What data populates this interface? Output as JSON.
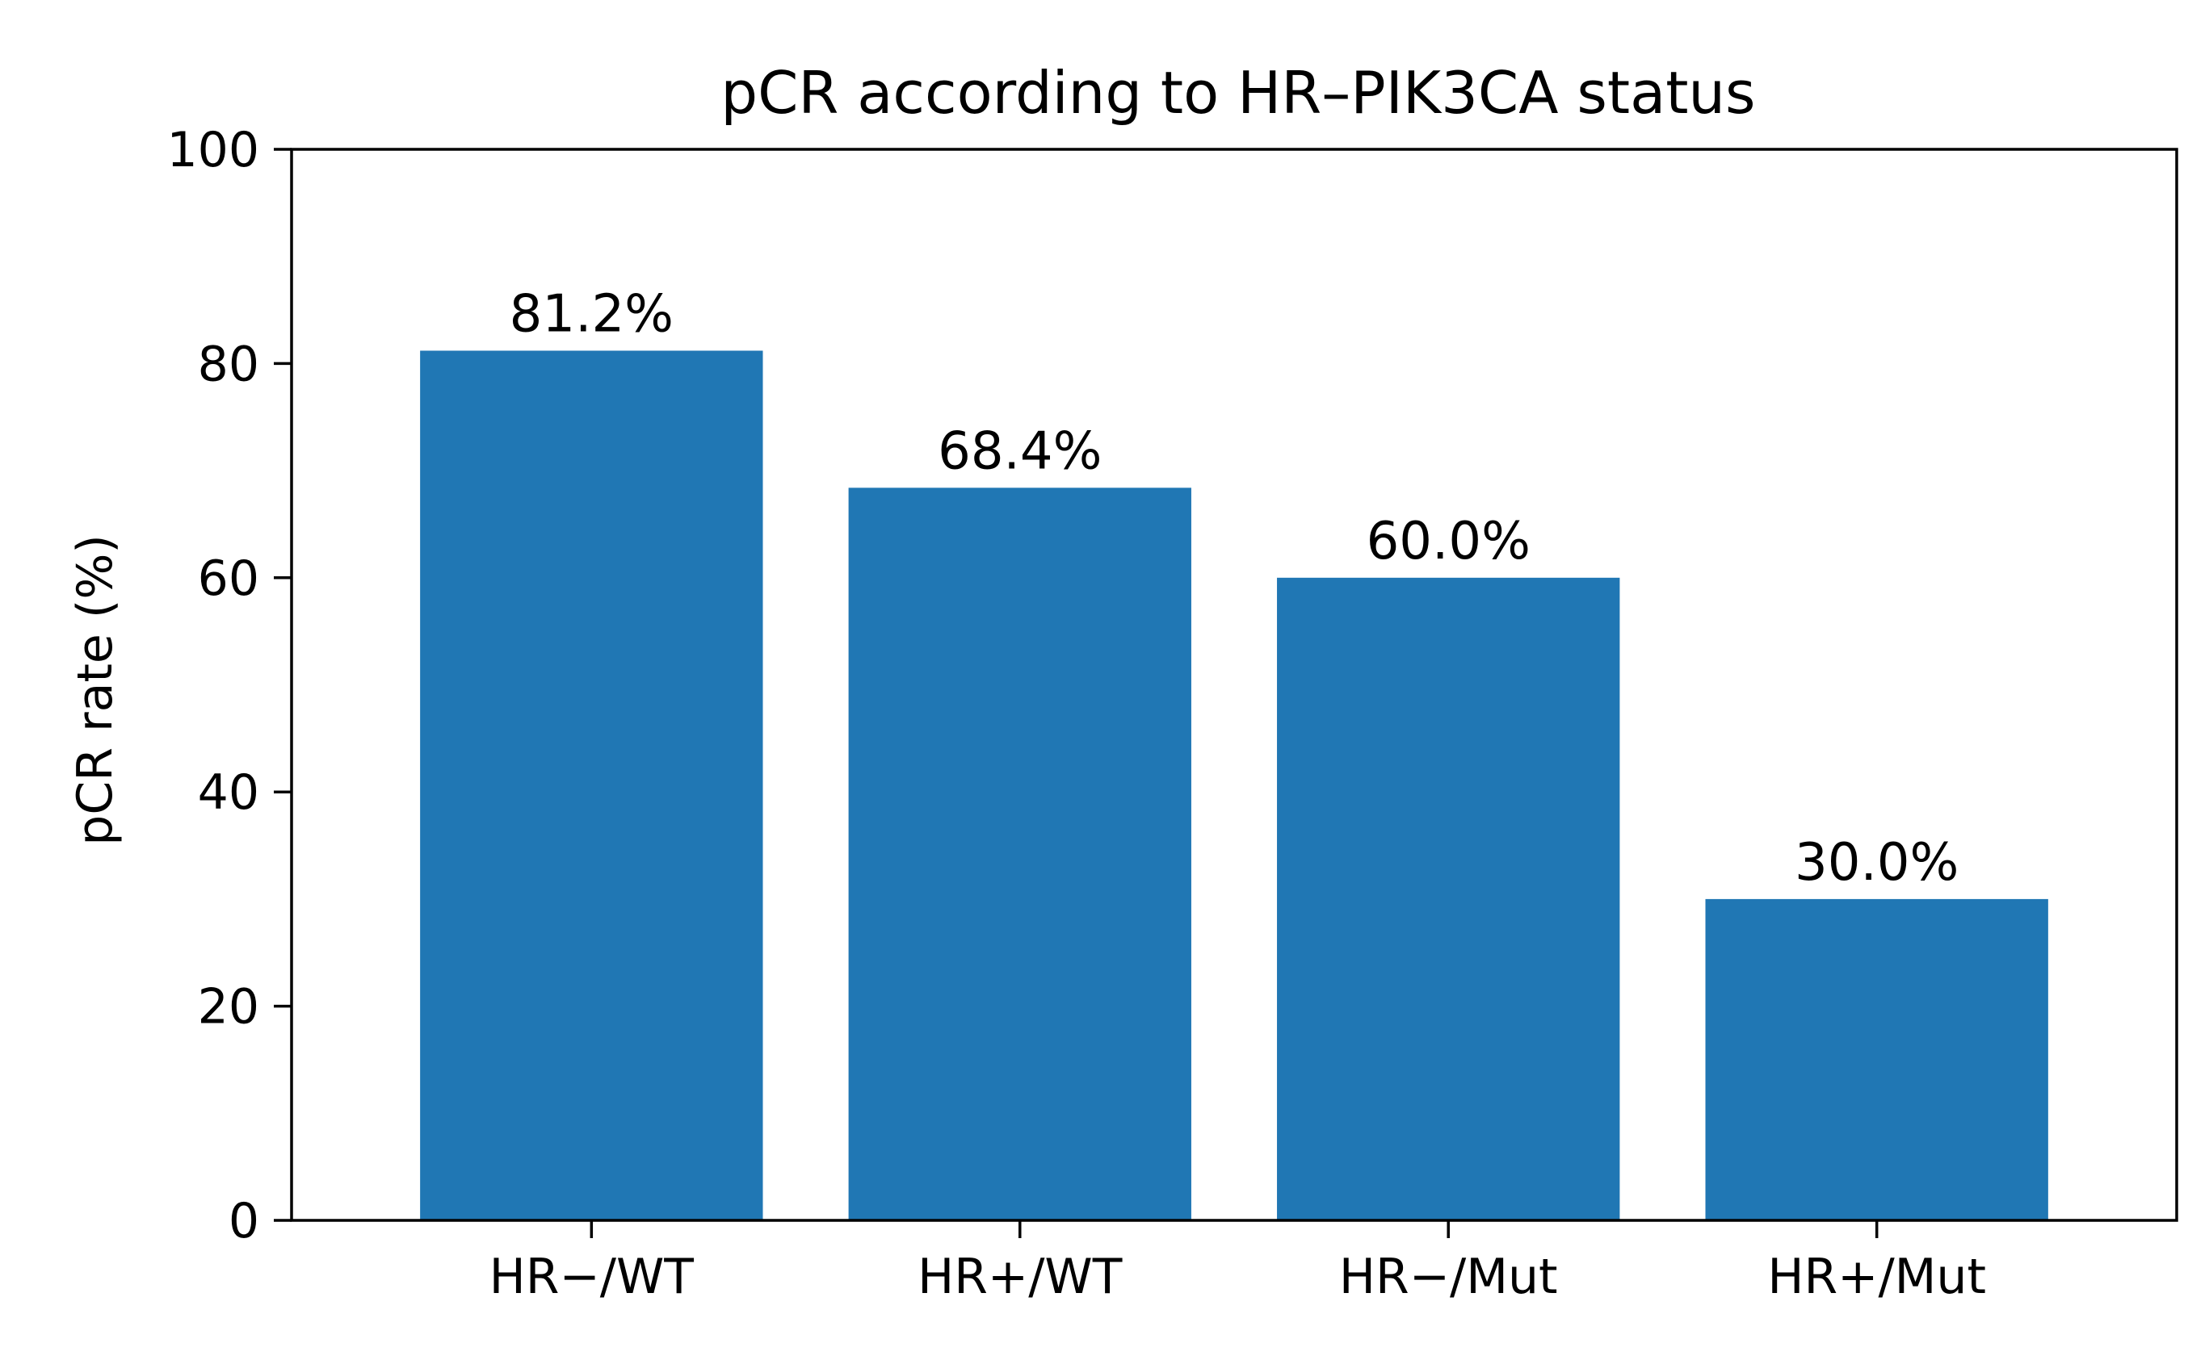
{
  "chart_data": {
    "type": "bar",
    "title": "pCR according to HR–PIK3CA status",
    "xlabel": "",
    "ylabel": "pCR rate (%)",
    "categories": [
      "HR−/WT",
      "HR+/WT",
      "HR−/Mut",
      "HR+/Mut"
    ],
    "values": [
      81.2,
      68.4,
      60.0,
      30.0
    ],
    "data_labels": [
      "81.2%",
      "68.4%",
      "60.0%",
      "30.0%"
    ],
    "ylim": [
      0,
      100
    ],
    "yticks": [
      0,
      20,
      40,
      60,
      80,
      100
    ],
    "ytick_labels": [
      "0",
      "20",
      "40",
      "60",
      "80",
      "100"
    ],
    "grid": false,
    "legend": "none",
    "bar_color": "#2077b4"
  }
}
